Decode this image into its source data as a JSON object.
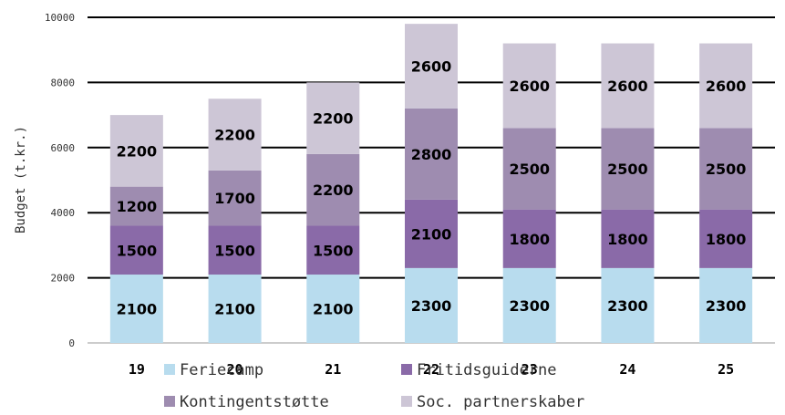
{
  "chart_data": {
    "type": "bar",
    "stacked": true,
    "categories": [
      "19",
      "20",
      "21",
      "22",
      "23",
      "24",
      "25"
    ],
    "series": [
      {
        "name": "Feriecamp",
        "color": "#b8dcee",
        "values": [
          2100,
          2100,
          2100,
          2300,
          2300,
          2300,
          2300
        ]
      },
      {
        "name": "Fritidsguiderne",
        "color": "#8a6aa8",
        "values": [
          1500,
          1500,
          1500,
          2100,
          1800,
          1800,
          1800
        ]
      },
      {
        "name": "Kontingentstøtte",
        "color": "#9e8cb0",
        "values": [
          1200,
          1700,
          2200,
          2800,
          2500,
          2500,
          2500
        ]
      },
      {
        "name": "Soc. partnerskaber",
        "color": "#cdc6d6",
        "values": [
          2200,
          2200,
          2200,
          2600,
          2600,
          2600,
          2600
        ]
      }
    ],
    "title": "",
    "xlabel": "",
    "ylabel": "Budget (t.kr.)",
    "ylim": [
      0,
      10000
    ],
    "yticks": [
      0,
      2000,
      4000,
      6000,
      8000,
      10000
    ],
    "grid": true,
    "legend": "bottom",
    "data_labels": true
  }
}
